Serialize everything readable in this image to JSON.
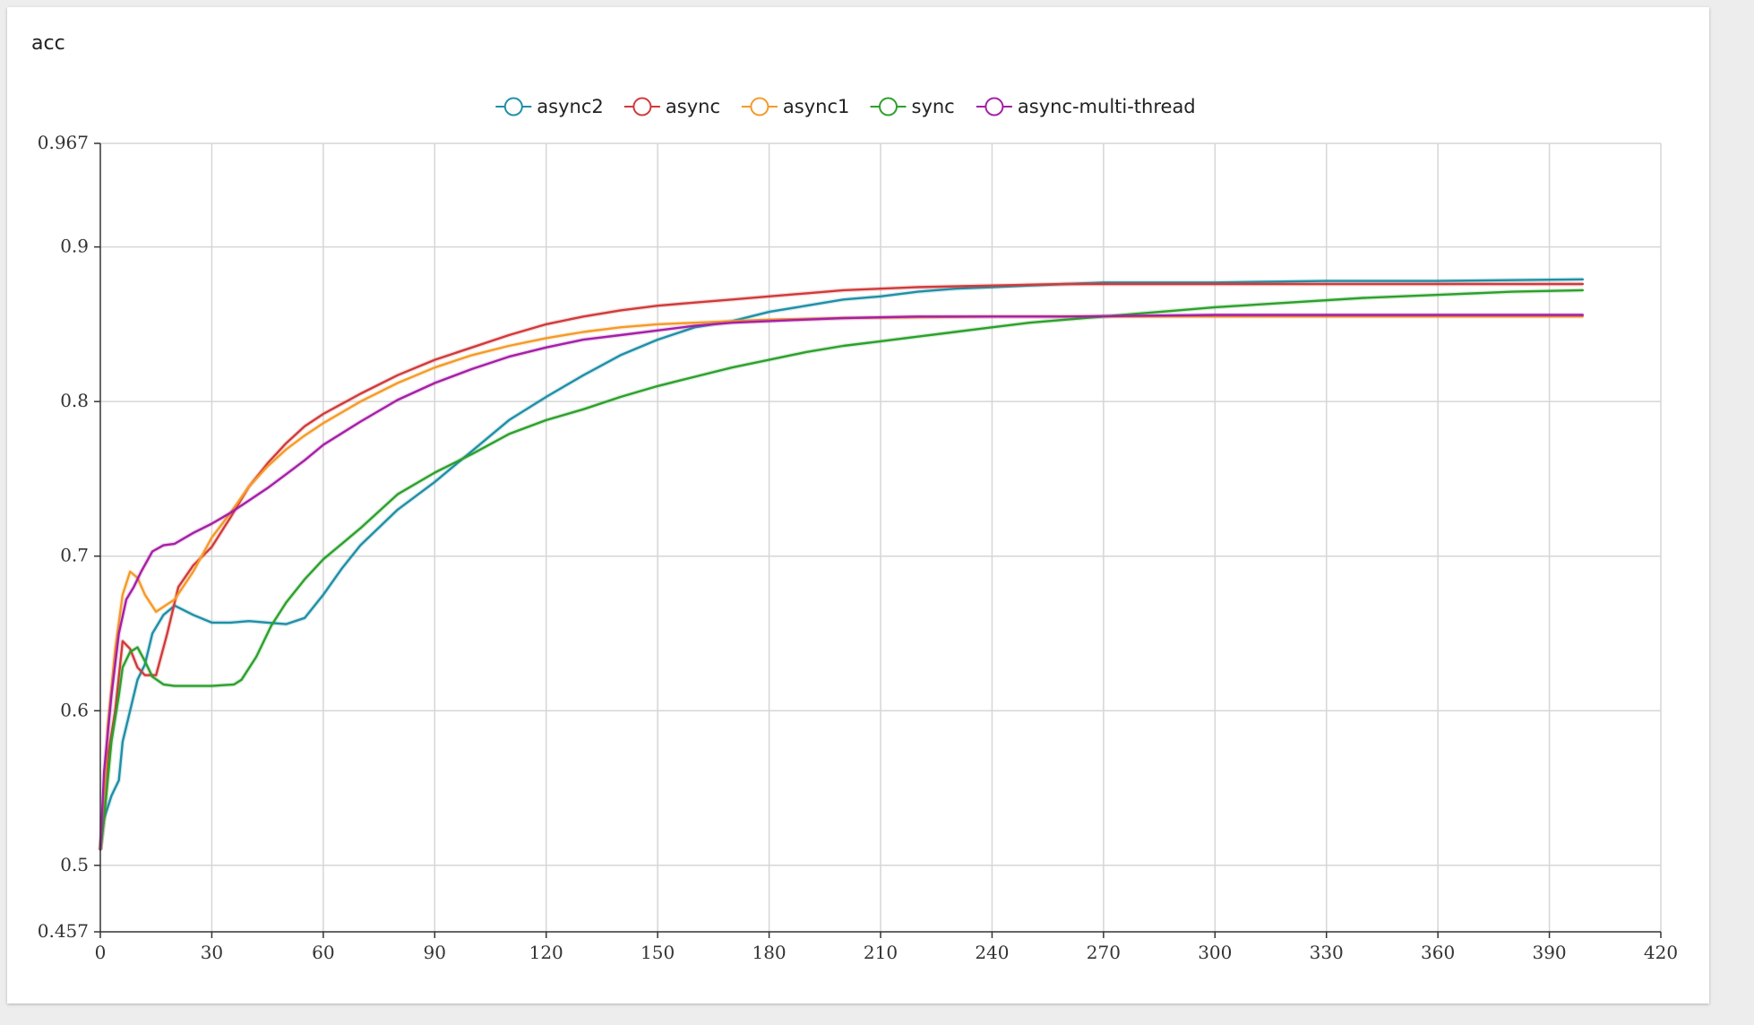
{
  "card": {
    "title": "acc"
  },
  "chart_data": {
    "type": "line",
    "title": "acc",
    "xlabel": "",
    "ylabel": "",
    "xlim": [
      0,
      420
    ],
    "ylim": [
      0.457,
      0.967
    ],
    "x_ticks": [
      0,
      30,
      60,
      90,
      120,
      150,
      180,
      210,
      240,
      270,
      300,
      330,
      360,
      390,
      420
    ],
    "y_ticks": [
      0.457,
      0.5,
      0.6,
      0.7,
      0.8,
      0.9,
      0.967
    ],
    "grid": true,
    "legend_position": "top-center",
    "series": [
      {
        "name": "async2",
        "color": "#1f8fa6",
        "points": [
          [
            0,
            0.51
          ],
          [
            1,
            0.53
          ],
          [
            3,
            0.545
          ],
          [
            5,
            0.555
          ],
          [
            6,
            0.58
          ],
          [
            8,
            0.6
          ],
          [
            10,
            0.62
          ],
          [
            12,
            0.63
          ],
          [
            14,
            0.65
          ],
          [
            17,
            0.662
          ],
          [
            20,
            0.668
          ],
          [
            25,
            0.662
          ],
          [
            30,
            0.657
          ],
          [
            35,
            0.657
          ],
          [
            40,
            0.658
          ],
          [
            45,
            0.657
          ],
          [
            50,
            0.656
          ],
          [
            55,
            0.66
          ],
          [
            60,
            0.675
          ],
          [
            65,
            0.692
          ],
          [
            70,
            0.707
          ],
          [
            80,
            0.73
          ],
          [
            90,
            0.748
          ],
          [
            100,
            0.768
          ],
          [
            110,
            0.788
          ],
          [
            120,
            0.803
          ],
          [
            130,
            0.817
          ],
          [
            140,
            0.83
          ],
          [
            150,
            0.84
          ],
          [
            160,
            0.848
          ],
          [
            170,
            0.852
          ],
          [
            180,
            0.858
          ],
          [
            190,
            0.862
          ],
          [
            200,
            0.866
          ],
          [
            210,
            0.868
          ],
          [
            220,
            0.871
          ],
          [
            230,
            0.873
          ],
          [
            240,
            0.874
          ],
          [
            250,
            0.875
          ],
          [
            260,
            0.876
          ],
          [
            270,
            0.877
          ],
          [
            280,
            0.877
          ],
          [
            300,
            0.877
          ],
          [
            330,
            0.878
          ],
          [
            360,
            0.878
          ],
          [
            399,
            0.879
          ]
        ]
      },
      {
        "name": "async",
        "color": "#d03a3a",
        "points": [
          [
            0,
            0.51
          ],
          [
            1,
            0.53
          ],
          [
            2,
            0.57
          ],
          [
            4,
            0.6
          ],
          [
            6,
            0.645
          ],
          [
            8,
            0.64
          ],
          [
            10,
            0.628
          ],
          [
            12,
            0.623
          ],
          [
            15,
            0.623
          ],
          [
            18,
            0.65
          ],
          [
            21,
            0.68
          ],
          [
            25,
            0.694
          ],
          [
            30,
            0.706
          ],
          [
            35,
            0.725
          ],
          [
            40,
            0.745
          ],
          [
            45,
            0.76
          ],
          [
            50,
            0.773
          ],
          [
            55,
            0.784
          ],
          [
            60,
            0.792
          ],
          [
            70,
            0.805
          ],
          [
            80,
            0.817
          ],
          [
            90,
            0.827
          ],
          [
            100,
            0.835
          ],
          [
            110,
            0.843
          ],
          [
            120,
            0.85
          ],
          [
            130,
            0.855
          ],
          [
            140,
            0.859
          ],
          [
            150,
            0.862
          ],
          [
            160,
            0.864
          ],
          [
            170,
            0.866
          ],
          [
            180,
            0.868
          ],
          [
            190,
            0.87
          ],
          [
            200,
            0.872
          ],
          [
            210,
            0.873
          ],
          [
            220,
            0.874
          ],
          [
            240,
            0.875
          ],
          [
            260,
            0.876
          ],
          [
            280,
            0.876
          ],
          [
            300,
            0.876
          ],
          [
            330,
            0.876
          ],
          [
            360,
            0.876
          ],
          [
            399,
            0.876
          ]
        ]
      },
      {
        "name": "async1",
        "color": "#f59a28",
        "points": [
          [
            0,
            0.51
          ],
          [
            1,
            0.54
          ],
          [
            2,
            0.59
          ],
          [
            4,
            0.64
          ],
          [
            6,
            0.675
          ],
          [
            8,
            0.69
          ],
          [
            10,
            0.686
          ],
          [
            12,
            0.675
          ],
          [
            15,
            0.664
          ],
          [
            20,
            0.672
          ],
          [
            25,
            0.69
          ],
          [
            30,
            0.712
          ],
          [
            35,
            0.728
          ],
          [
            40,
            0.745
          ],
          [
            45,
            0.758
          ],
          [
            50,
            0.769
          ],
          [
            55,
            0.778
          ],
          [
            60,
            0.786
          ],
          [
            70,
            0.8
          ],
          [
            80,
            0.812
          ],
          [
            90,
            0.822
          ],
          [
            100,
            0.83
          ],
          [
            110,
            0.836
          ],
          [
            120,
            0.841
          ],
          [
            130,
            0.845
          ],
          [
            140,
            0.848
          ],
          [
            150,
            0.85
          ],
          [
            160,
            0.851
          ],
          [
            170,
            0.852
          ],
          [
            180,
            0.853
          ],
          [
            200,
            0.854
          ],
          [
            240,
            0.855
          ],
          [
            280,
            0.855
          ],
          [
            320,
            0.855
          ],
          [
            360,
            0.855
          ],
          [
            399,
            0.855
          ]
        ]
      },
      {
        "name": "sync",
        "color": "#2ca02c",
        "points": [
          [
            0,
            0.51
          ],
          [
            1,
            0.53
          ],
          [
            3,
            0.58
          ],
          [
            5,
            0.61
          ],
          [
            6,
            0.628
          ],
          [
            8,
            0.638
          ],
          [
            10,
            0.641
          ],
          [
            12,
            0.632
          ],
          [
            14,
            0.622
          ],
          [
            17,
            0.617
          ],
          [
            20,
            0.616
          ],
          [
            30,
            0.616
          ],
          [
            36,
            0.617
          ],
          [
            38,
            0.62
          ],
          [
            42,
            0.635
          ],
          [
            46,
            0.655
          ],
          [
            50,
            0.67
          ],
          [
            55,
            0.685
          ],
          [
            60,
            0.698
          ],
          [
            65,
            0.708
          ],
          [
            70,
            0.718
          ],
          [
            80,
            0.74
          ],
          [
            90,
            0.754
          ],
          [
            100,
            0.766
          ],
          [
            110,
            0.779
          ],
          [
            120,
            0.788
          ],
          [
            130,
            0.795
          ],
          [
            140,
            0.803
          ],
          [
            150,
            0.81
          ],
          [
            160,
            0.816
          ],
          [
            170,
            0.822
          ],
          [
            180,
            0.827
          ],
          [
            190,
            0.832
          ],
          [
            200,
            0.836
          ],
          [
            210,
            0.839
          ],
          [
            220,
            0.842
          ],
          [
            230,
            0.845
          ],
          [
            240,
            0.848
          ],
          [
            250,
            0.851
          ],
          [
            260,
            0.853
          ],
          [
            270,
            0.855
          ],
          [
            280,
            0.857
          ],
          [
            290,
            0.859
          ],
          [
            300,
            0.861
          ],
          [
            320,
            0.864
          ],
          [
            340,
            0.867
          ],
          [
            360,
            0.869
          ],
          [
            380,
            0.871
          ],
          [
            399,
            0.872
          ]
        ]
      },
      {
        "name": "async-multi-thread",
        "color": "#a51fa5",
        "points": [
          [
            0,
            0.51
          ],
          [
            1,
            0.56
          ],
          [
            3,
            0.61
          ],
          [
            5,
            0.65
          ],
          [
            7,
            0.672
          ],
          [
            9,
            0.68
          ],
          [
            11,
            0.69
          ],
          [
            14,
            0.703
          ],
          [
            17,
            0.707
          ],
          [
            20,
            0.708
          ],
          [
            25,
            0.715
          ],
          [
            30,
            0.721
          ],
          [
            35,
            0.728
          ],
          [
            40,
            0.736
          ],
          [
            45,
            0.744
          ],
          [
            50,
            0.753
          ],
          [
            55,
            0.762
          ],
          [
            60,
            0.772
          ],
          [
            70,
            0.787
          ],
          [
            80,
            0.801
          ],
          [
            90,
            0.812
          ],
          [
            100,
            0.821
          ],
          [
            110,
            0.829
          ],
          [
            120,
            0.835
          ],
          [
            130,
            0.84
          ],
          [
            140,
            0.843
          ],
          [
            150,
            0.846
          ],
          [
            160,
            0.849
          ],
          [
            170,
            0.851
          ],
          [
            180,
            0.852
          ],
          [
            190,
            0.853
          ],
          [
            200,
            0.854
          ],
          [
            220,
            0.855
          ],
          [
            260,
            0.855
          ],
          [
            300,
            0.856
          ],
          [
            340,
            0.856
          ],
          [
            399,
            0.856
          ]
        ]
      }
    ]
  }
}
